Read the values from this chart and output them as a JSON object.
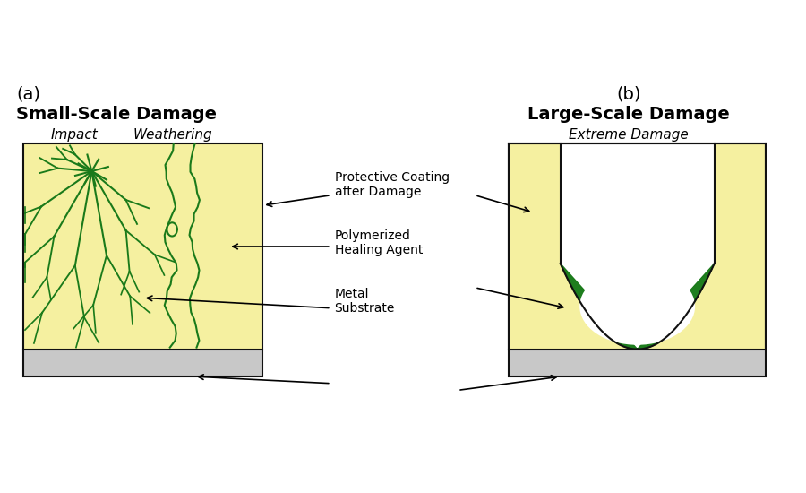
{
  "bg_color": "#ffffff",
  "coating_yellow": "#f5f0a0",
  "coating_yellow_fill": "#f0ee9a",
  "substrate_gray": "#c8c8c8",
  "crack_green": "#1a7a1a",
  "healing_green_dark": "#1a6e1a",
  "healing_green_fill": "#1e7e1e",
  "border_color": "#111111",
  "label_a": "(a)",
  "label_b": "(b)",
  "title_a": "Small-Scale Damage",
  "title_b": "Large-Scale Damage",
  "subtitle_a_left": "Impact",
  "subtitle_a_right": "Weathering",
  "subtitle_b": "Extreme Damage",
  "annotation1": "Protective Coating\nafter Damage",
  "annotation2": "Polymerized\nHealing Agent",
  "annotation3": "Metal\nSubstrate"
}
